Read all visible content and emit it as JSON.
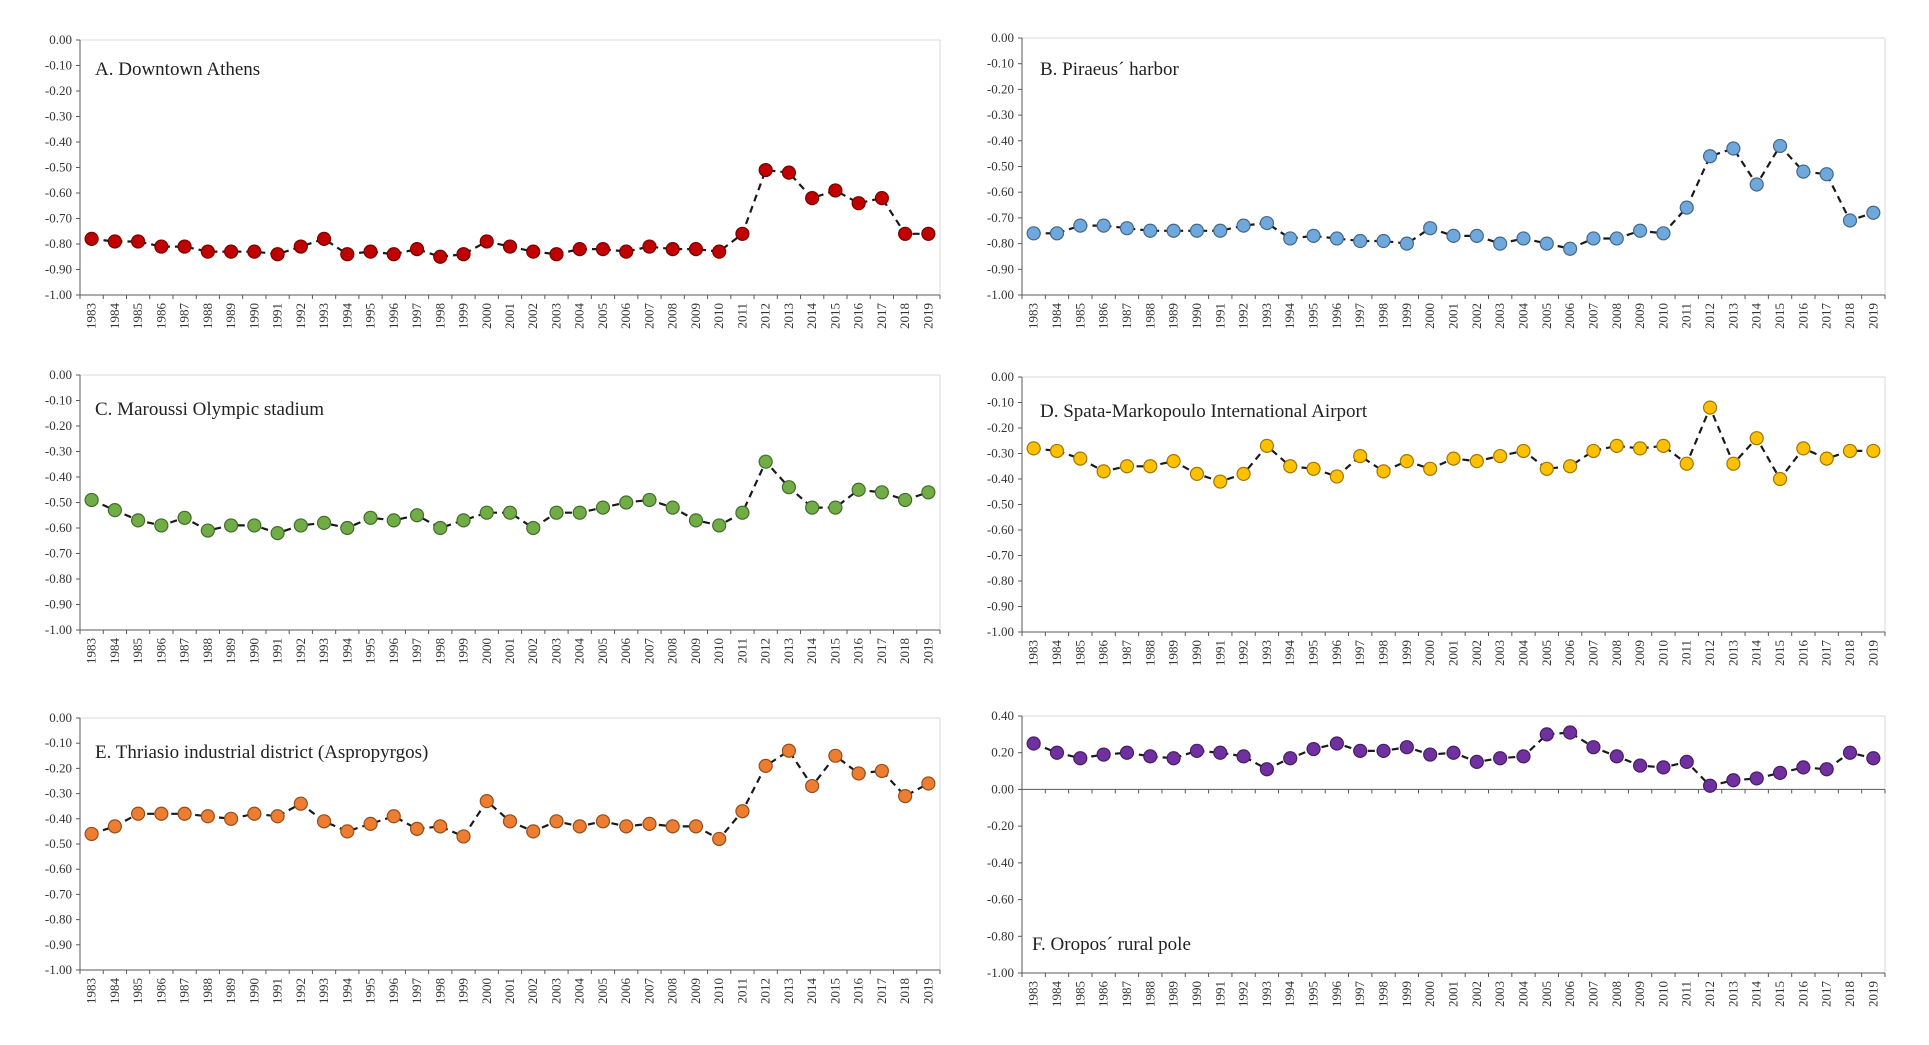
{
  "chart_data": [
    {
      "id": "A",
      "type": "line",
      "title": "A. Downtown Athens",
      "color": "#c00000",
      "ylim": [
        -1.0,
        0.0
      ],
      "yticks": [
        0.0,
        -0.1,
        -0.2,
        -0.3,
        -0.4,
        -0.5,
        -0.6,
        -0.7,
        -0.8,
        -0.9,
        -1.0
      ],
      "ytick_labels": [
        "0.00",
        "-0.10",
        "-0.20",
        "-0.30",
        "-0.40",
        "-0.50",
        "-0.60",
        "-0.70",
        "-0.80",
        "-0.90",
        "-1.00"
      ],
      "x": [
        "1983",
        "1984",
        "1985",
        "1986",
        "1987",
        "1988",
        "1989",
        "1990",
        "1991",
        "1992",
        "1993",
        "1994",
        "1995",
        "1996",
        "1997",
        "1998",
        "1999",
        "2000",
        "2001",
        "2002",
        "2003",
        "2004",
        "2005",
        "2006",
        "2007",
        "2008",
        "2009",
        "2010",
        "2011",
        "2012",
        "2013",
        "2014",
        "2015",
        "2016",
        "2017",
        "2018",
        "2019"
      ],
      "values": [
        -0.78,
        -0.79,
        -0.79,
        -0.81,
        -0.81,
        -0.83,
        -0.83,
        -0.83,
        -0.84,
        -0.81,
        -0.78,
        -0.84,
        -0.83,
        -0.84,
        -0.82,
        -0.85,
        -0.84,
        -0.79,
        -0.81,
        -0.83,
        -0.84,
        -0.82,
        -0.82,
        -0.83,
        -0.81,
        -0.82,
        -0.82,
        -0.83,
        -0.76,
        -0.51,
        -0.52,
        -0.62,
        -0.59,
        -0.64,
        -0.62,
        -0.76,
        -0.76
      ]
    },
    {
      "id": "B",
      "type": "line",
      "title": "B. Piraeus´ harbor",
      "color": "#6fa8dc",
      "ylim": [
        -1.0,
        0.0
      ],
      "yticks": [
        0.0,
        -0.1,
        -0.2,
        -0.3,
        -0.4,
        -0.5,
        -0.6,
        -0.7,
        -0.8,
        -0.9,
        -1.0
      ],
      "ytick_labels": [
        "0.00",
        "-0.10",
        "-0.20",
        "-0.30",
        "-0.40",
        "-0.50",
        "-0.60",
        "-0.70",
        "-0.80",
        "-0.90",
        "-1.00"
      ],
      "x": [
        "1983",
        "1984",
        "1985",
        "1986",
        "1987",
        "1988",
        "1989",
        "1990",
        "1991",
        "1992",
        "1993",
        "1994",
        "1995",
        "1996",
        "1997",
        "1998",
        "1999",
        "2000",
        "2001",
        "2002",
        "2003",
        "2004",
        "2005",
        "2006",
        "2007",
        "2008",
        "2009",
        "2010",
        "2011",
        "2012",
        "2013",
        "2014",
        "2015",
        "2016",
        "2017",
        "2018",
        "2019"
      ],
      "values": [
        -0.76,
        -0.76,
        -0.73,
        -0.73,
        -0.74,
        -0.75,
        -0.75,
        -0.75,
        -0.75,
        -0.73,
        -0.72,
        -0.78,
        -0.77,
        -0.78,
        -0.79,
        -0.79,
        -0.8,
        -0.74,
        -0.77,
        -0.77,
        -0.8,
        -0.78,
        -0.8,
        -0.82,
        -0.78,
        -0.78,
        -0.75,
        -0.76,
        -0.66,
        -0.46,
        -0.43,
        -0.57,
        -0.42,
        -0.52,
        -0.53,
        -0.71,
        -0.68
      ]
    },
    {
      "id": "C",
      "type": "line",
      "title": "C. Maroussi Olympic stadium",
      "color": "#70ad47",
      "ylim": [
        -1.0,
        0.0
      ],
      "yticks": [
        0.0,
        -0.1,
        -0.2,
        -0.3,
        -0.4,
        -0.5,
        -0.6,
        -0.7,
        -0.8,
        -0.9,
        -1.0
      ],
      "ytick_labels": [
        "0.00",
        "-0.10",
        "-0.20",
        "-0.30",
        "-0.40",
        "-0.50",
        "-0.60",
        "-0.70",
        "-0.80",
        "-0.90",
        "-1.00"
      ],
      "x": [
        "1983",
        "1984",
        "1985",
        "1986",
        "1987",
        "1988",
        "1989",
        "1990",
        "1991",
        "1992",
        "1993",
        "1994",
        "1995",
        "1996",
        "1997",
        "1998",
        "1999",
        "2000",
        "2001",
        "2002",
        "2003",
        "2004",
        "2005",
        "2006",
        "2007",
        "2008",
        "2009",
        "2010",
        "2011",
        "2012",
        "2013",
        "2014",
        "2015",
        "2016",
        "2017",
        "2018",
        "2019"
      ],
      "values": [
        -0.49,
        -0.53,
        -0.57,
        -0.59,
        -0.56,
        -0.61,
        -0.59,
        -0.59,
        -0.62,
        -0.59,
        -0.58,
        -0.6,
        -0.56,
        -0.57,
        -0.55,
        -0.6,
        -0.57,
        -0.54,
        -0.54,
        -0.6,
        -0.54,
        -0.54,
        -0.52,
        -0.5,
        -0.49,
        -0.52,
        -0.57,
        -0.59,
        -0.54,
        -0.34,
        -0.44,
        -0.52,
        -0.52,
        -0.45,
        -0.46,
        -0.49,
        -0.46
      ]
    },
    {
      "id": "D",
      "type": "line",
      "title": "D. Spata-Markopoulo International Airport",
      "color": "#ffc000",
      "ylim": [
        -1.0,
        0.0
      ],
      "yticks": [
        0.0,
        -0.1,
        -0.2,
        -0.3,
        -0.4,
        -0.5,
        -0.6,
        -0.7,
        -0.8,
        -0.9,
        -1.0
      ],
      "ytick_labels": [
        "0.00",
        "-0.10",
        "-0.20",
        "-0.30",
        "-0.40",
        "-0.50",
        "-0.60",
        "-0.70",
        "-0.80",
        "-0.90",
        "-1.00"
      ],
      "x": [
        "1983",
        "1984",
        "1985",
        "1986",
        "1987",
        "1988",
        "1989",
        "1990",
        "1991",
        "1992",
        "1993",
        "1994",
        "1995",
        "1996",
        "1997",
        "1998",
        "1999",
        "2000",
        "2001",
        "2002",
        "2003",
        "2004",
        "2005",
        "2006",
        "2007",
        "2008",
        "2009",
        "2010",
        "2011",
        "2012",
        "2013",
        "2014",
        "2015",
        "2016",
        "2017",
        "2018",
        "2019"
      ],
      "values": [
        -0.28,
        -0.29,
        -0.32,
        -0.37,
        -0.35,
        -0.35,
        -0.33,
        -0.38,
        -0.41,
        -0.38,
        -0.27,
        -0.35,
        -0.36,
        -0.39,
        -0.31,
        -0.37,
        -0.33,
        -0.36,
        -0.32,
        -0.33,
        -0.31,
        -0.29,
        -0.36,
        -0.35,
        -0.29,
        -0.27,
        -0.28,
        -0.27,
        -0.34,
        -0.12,
        -0.34,
        -0.24,
        -0.4,
        -0.28,
        -0.32,
        -0.29,
        -0.29
      ]
    },
    {
      "id": "E",
      "type": "line",
      "title": "E. Thriasio industrial district (Aspropyrgos)",
      "color": "#ed7d31",
      "ylim": [
        -1.0,
        0.0
      ],
      "yticks": [
        0.0,
        -0.1,
        -0.2,
        -0.3,
        -0.4,
        -0.5,
        -0.6,
        -0.7,
        -0.8,
        -0.9,
        -1.0
      ],
      "ytick_labels": [
        "0.00",
        "-0.10",
        "-0.20",
        "-0.30",
        "-0.40",
        "-0.50",
        "-0.60",
        "-0.70",
        "-0.80",
        "-0.90",
        "-1.00"
      ],
      "x": [
        "1983",
        "1984",
        "1985",
        "1986",
        "1987",
        "1988",
        "1989",
        "1990",
        "1991",
        "1992",
        "1993",
        "1994",
        "1995",
        "1996",
        "1997",
        "1998",
        "1999",
        "2000",
        "2001",
        "2002",
        "2003",
        "2004",
        "2005",
        "2006",
        "2007",
        "2008",
        "2009",
        "2010",
        "2011",
        "2012",
        "2013",
        "2014",
        "2015",
        "2016",
        "2017",
        "2018",
        "2019"
      ],
      "values": [
        -0.46,
        -0.43,
        -0.38,
        -0.38,
        -0.38,
        -0.39,
        -0.4,
        -0.38,
        -0.39,
        -0.34,
        -0.41,
        -0.45,
        -0.42,
        -0.39,
        -0.44,
        -0.43,
        -0.47,
        -0.33,
        -0.41,
        -0.45,
        -0.41,
        -0.43,
        -0.41,
        -0.43,
        -0.42,
        -0.43,
        -0.43,
        -0.48,
        -0.37,
        -0.19,
        -0.13,
        -0.27,
        -0.15,
        -0.22,
        -0.21,
        -0.31,
        -0.26
      ]
    },
    {
      "id": "F",
      "type": "line",
      "title": "F. Oropos´ rural pole",
      "color": "#7030a0",
      "ylim": [
        -1.0,
        0.4
      ],
      "yticks": [
        0.4,
        0.2,
        0.0,
        -0.2,
        -0.4,
        -0.6,
        -0.8,
        -1.0
      ],
      "ytick_labels": [
        "0.40",
        "0.20",
        "0.00",
        "-0.20",
        "-0.40",
        "-0.60",
        "-0.80",
        "-1.00"
      ],
      "x": [
        "1983",
        "1984",
        "1985",
        "1986",
        "1987",
        "1988",
        "1989",
        "1990",
        "1991",
        "1992",
        "1993",
        "1994",
        "1995",
        "1996",
        "1997",
        "1998",
        "1999",
        "2000",
        "2001",
        "2002",
        "2003",
        "2004",
        "2005",
        "2006",
        "2007",
        "2008",
        "2009",
        "2010",
        "2011",
        "2012",
        "2013",
        "2014",
        "2015",
        "2016",
        "2017",
        "2018",
        "2019"
      ],
      "values": [
        0.25,
        0.2,
        0.17,
        0.19,
        0.2,
        0.18,
        0.17,
        0.21,
        0.2,
        0.18,
        0.11,
        0.17,
        0.22,
        0.25,
        0.21,
        0.21,
        0.23,
        0.19,
        0.2,
        0.15,
        0.17,
        0.18,
        0.3,
        0.31,
        0.23,
        0.18,
        0.13,
        0.12,
        0.15,
        0.02,
        0.05,
        0.06,
        0.09,
        0.12,
        0.11,
        0.2,
        0.17
      ]
    }
  ]
}
